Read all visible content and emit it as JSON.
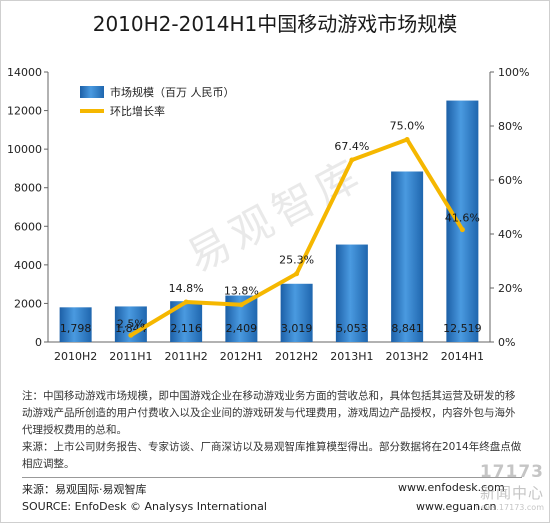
{
  "page_title": "2010H2-2014H1中国移动游戏市场规模",
  "chart_data": {
    "type": "bar",
    "categories": [
      "2010H2",
      "2011H1",
      "2011H2",
      "2012H1",
      "2012H2",
      "2013H1",
      "2013H2",
      "2014H1"
    ],
    "series": [
      {
        "name": "市场规模（百万 人民币）",
        "type": "bar",
        "axis": "left",
        "values": [
          1798,
          1844,
          2116,
          2409,
          3019,
          5053,
          8841,
          12519
        ],
        "labels": [
          "1,798",
          "1,844",
          "2,116",
          "2,409",
          "3,019",
          "5,053",
          "8,841",
          "12,519"
        ],
        "color": "#2a77bd"
      },
      {
        "name": "环比增长率",
        "type": "line",
        "axis": "right",
        "values": [
          null,
          2.5,
          14.8,
          13.8,
          25.3,
          67.4,
          75.0,
          41.6
        ],
        "labels": [
          "",
          "2.5%",
          "14.8%",
          "13.8%",
          "25.3%",
          "67.4%",
          "75.0%",
          "41.6%"
        ],
        "color": "#f5b700"
      }
    ],
    "yleft": {
      "range": [
        0,
        14000
      ],
      "ticks": [
        "0",
        "2000",
        "4000",
        "6000",
        "8000",
        "10000",
        "12000",
        "14000"
      ]
    },
    "yright": {
      "range": [
        0,
        100
      ],
      "ticks": [
        "0%",
        "20%",
        "40%",
        "60%",
        "80%",
        "100%"
      ]
    },
    "grid": false,
    "legend_position": "top-left"
  },
  "watermark": "易观智库",
  "notes": [
    "注：中国移动游戏市场规模，即中国游戏企业在移动游戏业务方面的营收总和，具体包括其运营及研发的移动游戏产品所创造的用户付费收入以及企业间的游戏研发与代理费用，游戏周边产品授权，内容外包与海外代理授权费用的总和。",
    "来源：上市公司财务报告、专家访谈、厂商深访以及易观智库推算模型得出。部分数据将在2014年终盘点做相应调整。"
  ],
  "source_cn": "来源：易观国际·易观智库",
  "source_en": "SOURCE: EnfoDesk © Analysys International",
  "site1": "www.enfodesk.com",
  "site2": "www.eguan.cn",
  "corner_watermark": {
    "line1": "17173",
    "line2": "新闻中心",
    "line3": "news.17173.com"
  }
}
